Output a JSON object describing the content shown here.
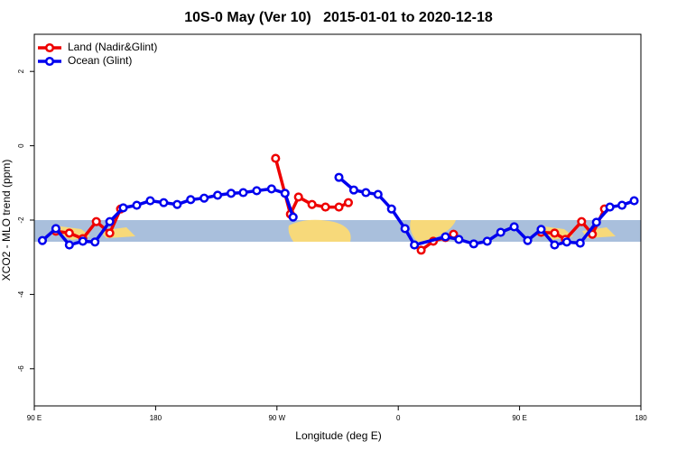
{
  "chart_data": {
    "type": "line",
    "title": "10S-0 May (Ver 10)   2015-01-01 to 2020-12-18",
    "xlabel": "Longitude (deg E)",
    "ylabel": "XCO2 - MLO trend (ppm)",
    "xlim": [
      90,
      540
    ],
    "xticks": [
      {
        "value": 90,
        "label": "90 E"
      },
      180,
      {
        "value": 270,
        "label": "90 W"
      },
      {
        "value": 360,
        "label": "0"
      },
      {
        "value": 450,
        "label": "90 E"
      },
      {
        "value": 540,
        "label": "180"
      }
    ],
    "ylim": [
      -7,
      3
    ],
    "yticks": [
      2,
      0,
      -2,
      -4,
      -6
    ],
    "grid": false,
    "legend": "top-left",
    "series": [
      {
        "name": "Land (Nadir&Glint)",
        "color": "#ee0000",
        "x": [
          106,
          116,
          126,
          136,
          146,
          154,
          null,
          269,
          280,
          286,
          296,
          306,
          316,
          323,
          null,
          377,
          386,
          395,
          401,
          null,
          466,
          476,
          484,
          496,
          504,
          513
        ],
        "values": [
          -2.3,
          -2.35,
          -2.5,
          -2.04,
          -2.35,
          -1.7,
          null,
          -0.34,
          -1.84,
          -1.38,
          -1.58,
          -1.65,
          -1.65,
          -1.53,
          null,
          -2.81,
          -2.57,
          -2.47,
          -2.38,
          null,
          -2.33,
          -2.35,
          -2.52,
          -2.04,
          -2.38,
          -1.7
        ]
      },
      {
        "name": "Ocean (Glint)",
        "color": "#0000ee",
        "x": [
          96,
          106,
          116,
          126,
          135,
          146,
          156,
          166,
          176,
          186,
          196,
          206,
          216,
          226,
          236,
          245,
          255,
          266,
          276,
          282,
          null,
          316,
          327,
          336,
          345,
          355,
          365,
          372,
          395,
          405,
          416,
          426,
          436,
          446,
          456,
          466,
          476,
          485,
          495,
          507,
          517,
          526,
          535
        ],
        "values": [
          -2.55,
          -2.23,
          -2.67,
          -2.57,
          -2.59,
          -2.04,
          -1.67,
          -1.6,
          -1.48,
          -1.53,
          -1.58,
          -1.45,
          -1.41,
          -1.33,
          -1.28,
          -1.26,
          -1.21,
          -1.16,
          -1.28,
          -1.92,
          null,
          -0.85,
          -1.19,
          -1.26,
          -1.31,
          -1.7,
          -2.23,
          -2.67,
          -2.45,
          -2.52,
          -2.64,
          -2.57,
          -2.33,
          -2.18,
          -2.55,
          -2.25,
          -2.67,
          -2.59,
          -2.62,
          -2.06,
          -1.65,
          -1.6,
          -1.48
        ]
      }
    ]
  }
}
